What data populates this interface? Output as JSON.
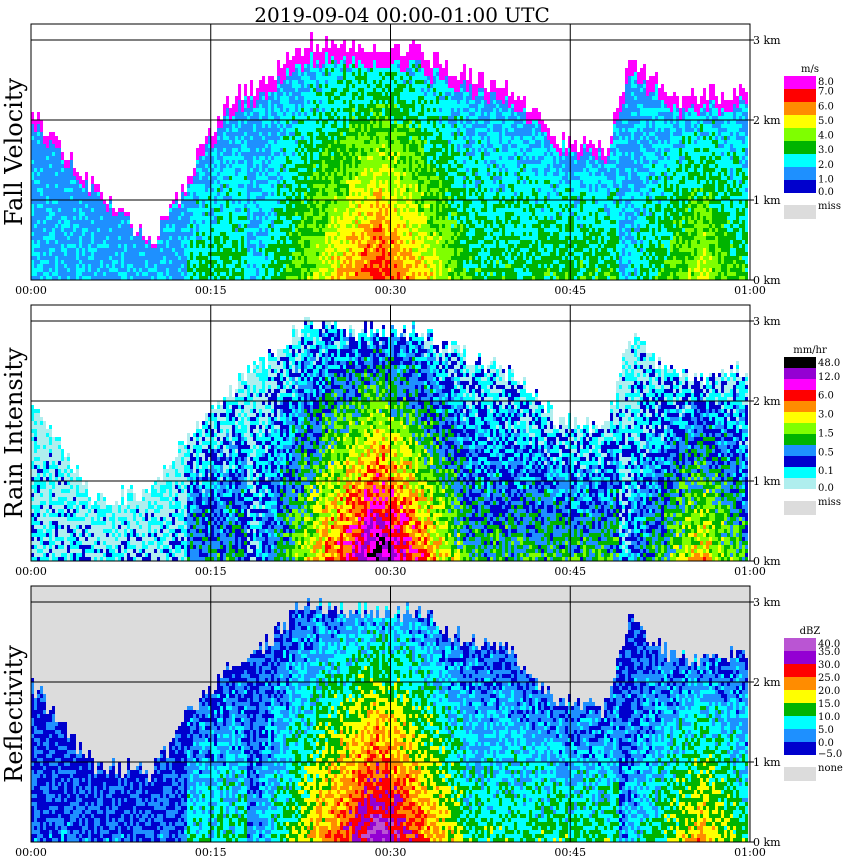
{
  "title": "2019-09-04   00:00-01:00 UTC",
  "x_ticks": [
    "00:00",
    "00:15",
    "00:30",
    "00:45",
    "01:00"
  ],
  "y_ticks": [
    "0 km",
    "1 km",
    "2 km",
    "3 km"
  ],
  "chart_data": [
    {
      "type": "heatmap",
      "name": "Fall Velocity",
      "unit": "m/s",
      "xlim": [
        "00:00",
        "01:00"
      ],
      "ylim_km": [
        0,
        3.1
      ],
      "grid": true,
      "legend": {
        "labels": [
          "8.0",
          "7.0",
          "6.0",
          "5.0",
          "4.0",
          "3.0",
          "2.0",
          "1.0",
          "0.0"
        ],
        "colors": [
          "#ff00ff",
          "#ff0000",
          "#ff8c00",
          "#ffff00",
          "#7fff00",
          "#00b400",
          "#00ffff",
          "#1e90ff",
          "#0000cd"
        ],
        "missing_label": "miss",
        "missing_color": "#dcdcdc"
      },
      "echo_top_km": [
        {
          "t": 0,
          "top": 2.1
        },
        {
          "t": 5,
          "top": 1.2
        },
        {
          "t": 10,
          "top": 0.5
        },
        {
          "t": 13,
          "top": 1.3
        },
        {
          "t": 16,
          "top": 2.2
        },
        {
          "t": 20,
          "top": 2.6
        },
        {
          "t": 23,
          "top": 3.0
        },
        {
          "t": 27,
          "top": 2.9
        },
        {
          "t": 32,
          "top": 2.9
        },
        {
          "t": 36,
          "top": 2.6
        },
        {
          "t": 40,
          "top": 2.4
        },
        {
          "t": 44,
          "top": 1.8
        },
        {
          "t": 48,
          "top": 1.7
        },
        {
          "t": 50,
          "top": 2.8
        },
        {
          "t": 54,
          "top": 2.3
        },
        {
          "t": 60,
          "top": 2.4
        }
      ]
    },
    {
      "type": "heatmap",
      "name": "Rain Intensity",
      "unit": "mm/hr",
      "xlim": [
        "00:00",
        "01:00"
      ],
      "ylim_km": [
        0,
        3.1
      ],
      "grid": true,
      "legend": {
        "labels": [
          "48.0",
          "12.0",
          "6.0",
          "3.0",
          "1.5",
          "0.5",
          "0.1",
          "0.0"
        ],
        "colors": [
          "#000000",
          "#9400d3",
          "#ff00ff",
          "#ff0000",
          "#ff8c00",
          "#ffff00",
          "#7fff00",
          "#00b400",
          "#1e90ff",
          "#0000cd",
          "#00ffff",
          "#afeeee"
        ],
        "missing_label": "miss",
        "missing_color": "#dcdcdc"
      },
      "echo_top_km": [
        {
          "t": 0,
          "top": 2.0
        },
        {
          "t": 5,
          "top": 0.8
        },
        {
          "t": 10,
          "top": 0.9
        },
        {
          "t": 13,
          "top": 1.6
        },
        {
          "t": 16,
          "top": 2.1
        },
        {
          "t": 20,
          "top": 2.6
        },
        {
          "t": 23,
          "top": 3.0
        },
        {
          "t": 27,
          "top": 2.9
        },
        {
          "t": 32,
          "top": 2.9
        },
        {
          "t": 36,
          "top": 2.6
        },
        {
          "t": 40,
          "top": 2.4
        },
        {
          "t": 44,
          "top": 1.8
        },
        {
          "t": 48,
          "top": 1.7
        },
        {
          "t": 50,
          "top": 2.8
        },
        {
          "t": 54,
          "top": 2.3
        },
        {
          "t": 60,
          "top": 2.4
        }
      ]
    },
    {
      "type": "heatmap",
      "name": "Reflectivity",
      "unit": "dBZ",
      "xlim": [
        "00:00",
        "01:00"
      ],
      "ylim_km": [
        0,
        3.1
      ],
      "grid": true,
      "legend": {
        "labels": [
          "40.0",
          "35.0",
          "30.0",
          "25.0",
          "20.0",
          "15.0",
          "10.0",
          "5.0",
          "0.0",
          "−5.0"
        ],
        "colors": [
          "#ba55d3",
          "#9400d3",
          "#ff0000",
          "#ff8c00",
          "#ffff00",
          "#00b400",
          "#00ffff",
          "#1e90ff",
          "#0000cd"
        ],
        "missing_label": "none",
        "missing_color": "#dcdcdc"
      },
      "echo_top_km": [
        {
          "t": 0,
          "top": 2.0
        },
        {
          "t": 5,
          "top": 1.0
        },
        {
          "t": 10,
          "top": 0.9
        },
        {
          "t": 13,
          "top": 1.6
        },
        {
          "t": 16,
          "top": 2.1
        },
        {
          "t": 20,
          "top": 2.6
        },
        {
          "t": 23,
          "top": 3.0
        },
        {
          "t": 27,
          "top": 2.9
        },
        {
          "t": 32,
          "top": 2.9
        },
        {
          "t": 36,
          "top": 2.6
        },
        {
          "t": 40,
          "top": 2.4
        },
        {
          "t": 44,
          "top": 1.8
        },
        {
          "t": 48,
          "top": 1.7
        },
        {
          "t": 50,
          "top": 2.8
        },
        {
          "t": 54,
          "top": 2.3
        },
        {
          "t": 60,
          "top": 2.4
        }
      ]
    }
  ]
}
